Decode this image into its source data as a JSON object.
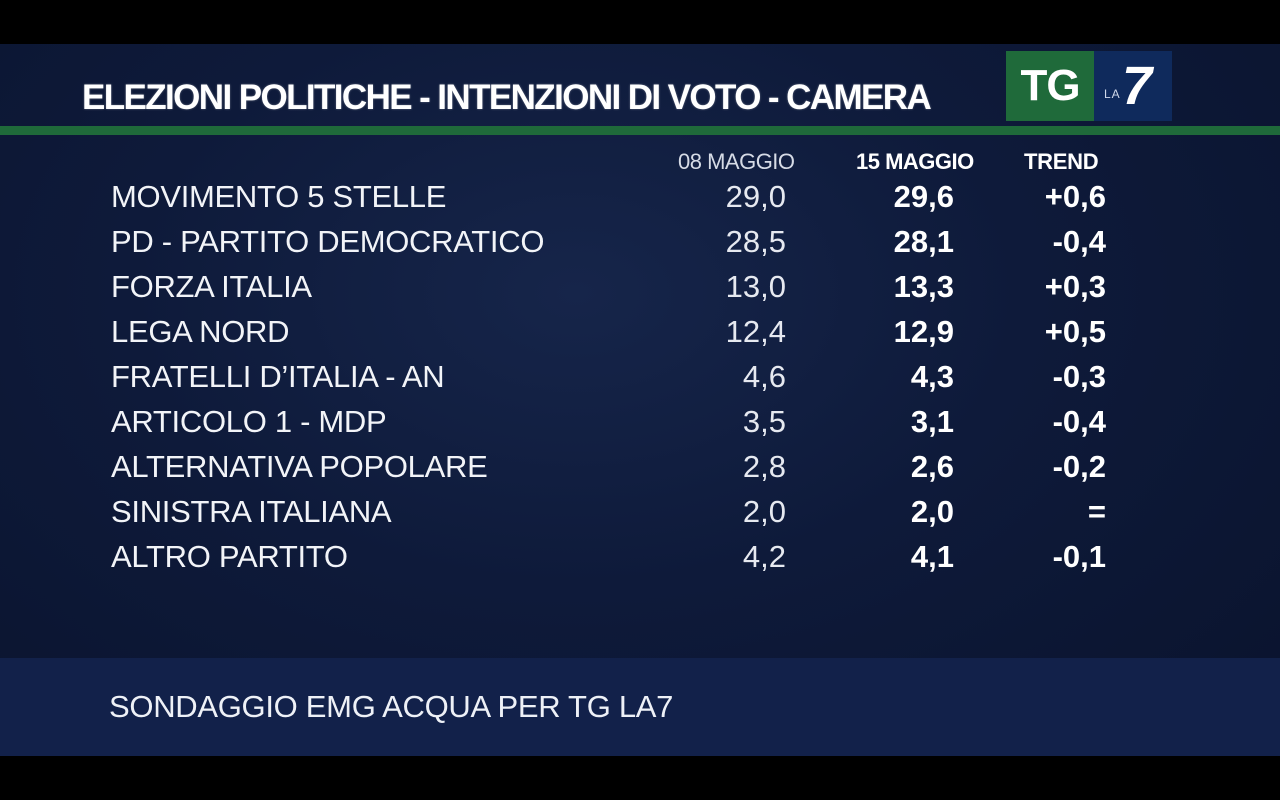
{
  "title": "ELEZIONI POLITICHE - INTENZIONI DI VOTO - CAMERA",
  "logo": {
    "tg": "TG",
    "la": "LA",
    "seven": "7"
  },
  "headers": {
    "previous": "08 MAGGIO",
    "current": "15 MAGGIO",
    "trend": "TREND"
  },
  "rows": [
    {
      "party": "MOVIMENTO 5 STELLE",
      "previous": "29,0",
      "current": "29,6",
      "trend": "+0,6"
    },
    {
      "party": "PD - PARTITO DEMOCRATICO",
      "previous": "28,5",
      "current": "28,1",
      "trend": "-0,4"
    },
    {
      "party": "FORZA ITALIA",
      "previous": "13,0",
      "current": "13,3",
      "trend": "+0,3"
    },
    {
      "party": "LEGA NORD",
      "previous": "12,4",
      "current": "12,9",
      "trend": "+0,5"
    },
    {
      "party": "FRATELLI D’ITALIA - AN",
      "previous": "4,6",
      "current": "4,3",
      "trend": "-0,3"
    },
    {
      "party": "ARTICOLO 1 - MDP",
      "previous": "3,5",
      "current": "3,1",
      "trend": "-0,4"
    },
    {
      "party": "ALTERNATIVA POPOLARE",
      "previous": "2,8",
      "current": "2,6",
      "trend": "-0,2"
    },
    {
      "party": "SINISTRA ITALIANA",
      "previous": "2,0",
      "current": "2,0",
      "trend": "="
    },
    {
      "party": "ALTRO PARTITO",
      "previous": "4,2",
      "current": "4,1",
      "trend": "-0,1"
    }
  ],
  "footer": "SONDAGGIO EMG ACQUA PER TG LA7",
  "colors": {
    "background": "#0e1a3a",
    "accent_green": "#1f6a3a",
    "logo_blue": "#0f2a5c",
    "footer_band": "#12214a"
  }
}
